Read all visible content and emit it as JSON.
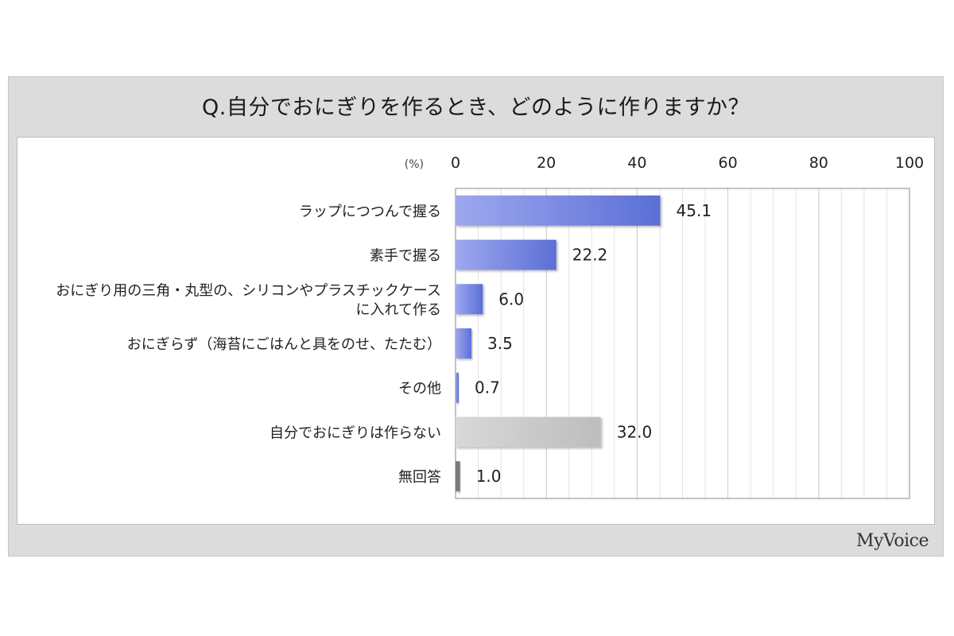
{
  "title": "Q.自分でおにぎりを作るとき、どのように作りますか？",
  "brand": "MyVoice",
  "colors": {
    "blue_bar": "#5b6fd6",
    "blue_bar_light": "#9ea8ef",
    "gray_bar": "#bdbdbd",
    "gray_bar_light": "#d8d8d8",
    "dark_bar": "#7a7a7a",
    "grid": "#c8c8c8",
    "axis": "#555555"
  },
  "chart_data": {
    "type": "bar",
    "orientation": "horizontal",
    "unit_label": "(%)",
    "xlim": [
      0,
      100
    ],
    "ticks": [
      "0",
      "20",
      "40",
      "60",
      "80",
      "100"
    ],
    "categories": [
      [
        "ラップにつつんで握る"
      ],
      [
        "素手で握る"
      ],
      [
        "おにぎり用の三角・丸型の、シリコンやプラスチックケース",
        "に入れて作る"
      ],
      [
        "おにぎらず（海苔にごはんと具をのせ、たたむ）"
      ],
      [
        "その他"
      ],
      [
        "自分でおにぎりは作らない"
      ],
      [
        "無回答"
      ]
    ],
    "values": [
      45.1,
      22.2,
      6.0,
      3.5,
      0.7,
      32.0,
      1.0
    ],
    "value_labels": [
      "45.1",
      "22.2",
      "6.0",
      "3.5",
      "0.7",
      "32.0",
      "1.0"
    ],
    "bar_styles": [
      "blue",
      "blue",
      "blue",
      "blue",
      "blue",
      "gray",
      "dark"
    ],
    "grid": true
  }
}
